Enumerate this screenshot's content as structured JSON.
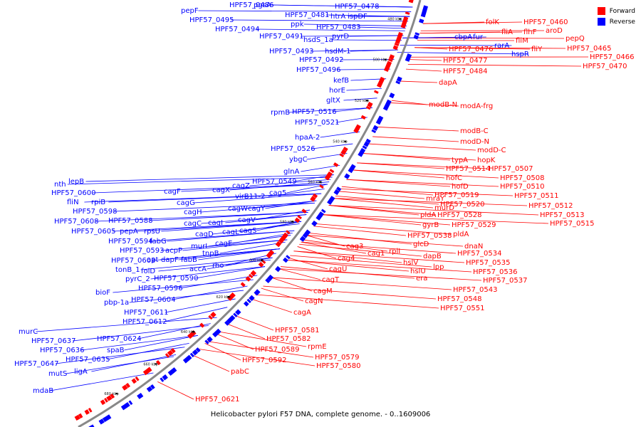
{
  "legend": {
    "forward": "Forward",
    "reverse": "Reverse"
  },
  "colors": {
    "forward": "#ff0000",
    "reverse": "#0000ff",
    "backbone": "#888888"
  },
  "caption": "Helicobacter pylori F57 DNA, complete genome. - 0..1609006",
  "ticks": [
    "480 kbp",
    "500 kbp",
    "520 kbp",
    "540 kbp",
    "560 kbp",
    "580 kbp",
    "600 kbp",
    "620 kbp",
    "640 kbp",
    "660 kbp",
    "680 kbp"
  ],
  "forward_labels": [
    "folK",
    "HPF57_0460",
    "fliA",
    "flhF",
    "aroD",
    "fliM",
    "pepQ",
    "fliY",
    "HPF57_0465",
    "HPF57_0466",
    "HPF57_0470",
    "HPF57_0476",
    "HPF57_0477",
    "HPF57_0484",
    "dapA",
    "modB-N",
    "modA-frg",
    "modB-C",
    "modD-N",
    "modD-C",
    "typA",
    "hopK",
    "HPF57_0514",
    "HPF57_0507",
    "hofC",
    "HPF57_0508",
    "hofD",
    "HPF57_0510",
    "HPF57_0519",
    "HPF57_0511",
    "mraY",
    "HPF57_0520",
    "HPF57_0512",
    "murD",
    "pldA",
    "HPF57_0528",
    "HPF57_0513",
    "gyrB",
    "HPF57_0529",
    "HPF57_0515",
    "HPF57_0538",
    "pldA",
    "glcD",
    "dnaN",
    "rplI",
    "dapB",
    "HPF57_0534",
    "hslV",
    "HPF57_0535",
    "lpp",
    "hslU",
    "HPF57_0536",
    "era",
    "HPF57_0537",
    "HPF57_0543",
    "HPF57_0548",
    "HPF57_0551",
    "cag3",
    "cag4",
    "cag1",
    "cagU",
    "cagT",
    "cagM",
    "cagN",
    "cagA",
    "HPF57_0581",
    "HPF57_0582",
    "rpmE",
    "HPF57_0589",
    "HPF57_0579",
    "HPF57_0592",
    "HPF57_0580",
    "pabC",
    "HPF57_0621"
  ],
  "reverse_labels": [
    "HPF57_0478",
    "HPF57_0486",
    "pgsA",
    "pepF",
    "HPF57_0481",
    "htrA",
    "ispDF",
    "HPF57_0495",
    "ppk",
    "HPF57_0483",
    "HPF57_0494",
    "HPF57_0491",
    "hsdS_1a",
    "pyrD",
    "HPF57_0493",
    "hsdM-1",
    "HPF57_0492",
    "HPF57_0496",
    "kefB",
    "horE",
    "gltX",
    "rpmB",
    "HPF57_0516",
    "HPF57_0521",
    "hpaA-2",
    "HPF57_0526",
    "ybgC",
    "glnA",
    "HPF57_0549",
    "cagX",
    "cagZ",
    "virB11-2",
    "cag5",
    "cagF",
    "cagG",
    "cagW",
    "cagY",
    "cagH",
    "cagC",
    "cagI",
    "cagV",
    "cagL",
    "cagS",
    "cagD",
    "cagE",
    "murI",
    "tnpB",
    "rho",
    "nth",
    "lepB",
    "HPF57_0600",
    "fliN",
    "rpiB",
    "HPF57_0598",
    "HPF57_0608",
    "HPF57_0588",
    "HPF57_0605",
    "pepA",
    "rpsU",
    "HPF57_0594",
    "fabG",
    "HPF57_0593",
    "acpP",
    "HPF57_0603",
    "apt",
    "dapF",
    "fabB",
    "tonB_1",
    "folD",
    "accA",
    "pyrC_2",
    "HPF57_0590",
    "HPF57_0596",
    "bioF",
    "pbp-1a",
    "HPF57_0604",
    "HPF57_0611",
    "HPF57_0612",
    "murC",
    "HPF57_0637",
    "HPF57_0624",
    "HPF57_0636",
    "spaB",
    "HPF57_0635",
    "HPF57_0647",
    "ligA",
    "mutS",
    "mdaB"
  ],
  "cbp_labels": [
    "cbpA",
    "fur",
    "rarA",
    "hspR"
  ]
}
